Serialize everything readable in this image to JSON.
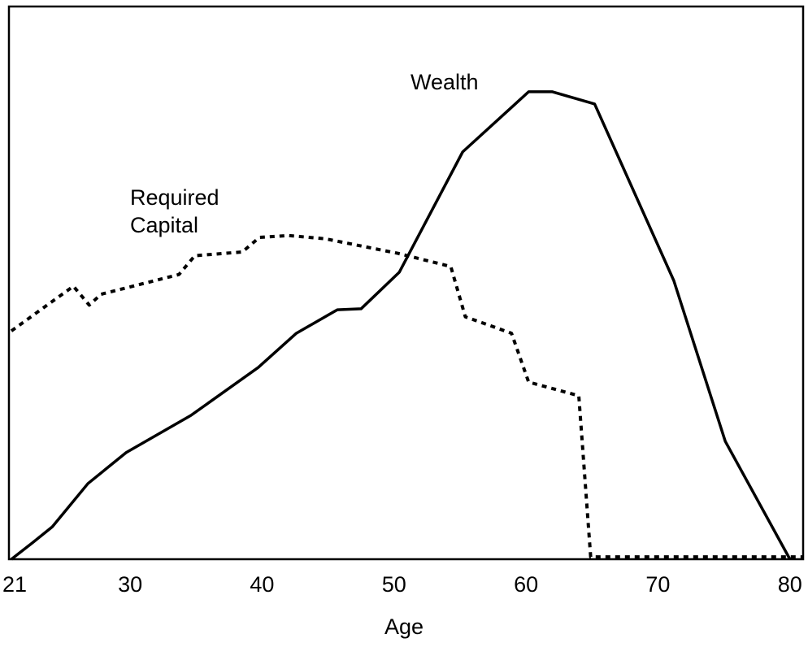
{
  "chart_data": {
    "type": "line",
    "x_label": "Age",
    "xlim": [
      21,
      81
    ],
    "xticks": [
      21,
      30,
      40,
      50,
      60,
      70,
      80
    ],
    "ylim": [
      0,
      100
    ],
    "grid": false,
    "series": [
      {
        "name": "Wealth",
        "color": "#000000",
        "dash": "solid",
        "x": [
          21,
          22.6,
          24.1,
          26.8,
          29.7,
          34.6,
          39.7,
          42.6,
          45.7,
          47.5,
          50.4,
          55.2,
          60.2,
          62.0,
          65.2,
          71.2,
          75.1,
          80
        ],
        "values": [
          0,
          3.5,
          6.9,
          16.1,
          22.7,
          30.6,
          40.8,
          48.1,
          53.1,
          53.3,
          61.1,
          86.7,
          99.5,
          99.5,
          96.9,
          59.3,
          25.1,
          0
        ]
      },
      {
        "name": "Required Capital",
        "color": "#000000",
        "dash": "dotted",
        "x": [
          21,
          25.7,
          26.9,
          27.8,
          33.7,
          34.9,
          38.5,
          39.8,
          42.0,
          44.8,
          50.3,
          54.3,
          55.4,
          58.9,
          60.2,
          64.0,
          64.9,
          81
        ],
        "values": [
          48.6,
          58.1,
          54.1,
          56.4,
          60.6,
          64.6,
          65.4,
          68.5,
          68.9,
          68.2,
          65.1,
          62.3,
          51.6,
          48.1,
          37.7,
          34.8,
          0.5,
          0.5
        ]
      }
    ]
  }
}
